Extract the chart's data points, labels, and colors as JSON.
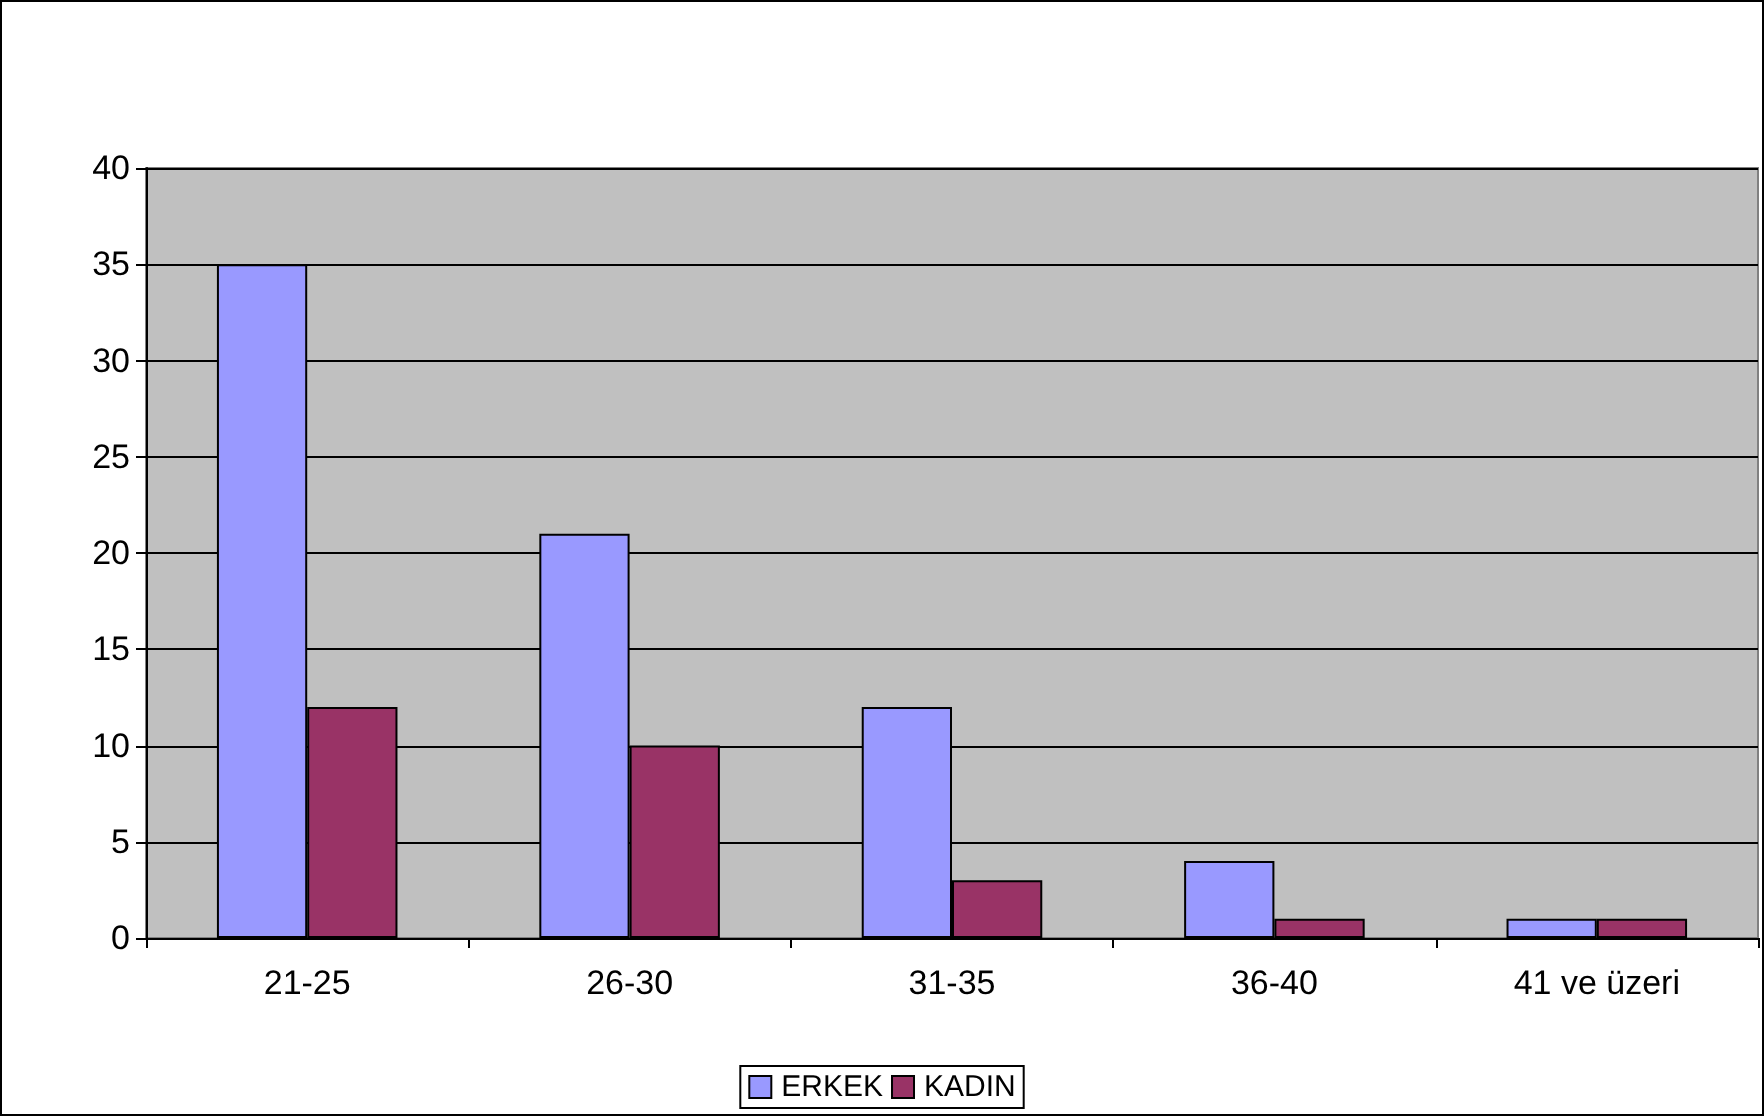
{
  "chart_data": {
    "type": "bar",
    "categories": [
      "21-25",
      "26-30",
      "31-35",
      "36-40",
      "41 ve üzeri"
    ],
    "series": [
      {
        "name": "ERKEK",
        "color": "#9999ff",
        "values": [
          35,
          21,
          12,
          4,
          1
        ]
      },
      {
        "name": "KADIN",
        "color": "#993366",
        "values": [
          12,
          10,
          3,
          1,
          1
        ]
      }
    ],
    "ylim": [
      0,
      40
    ],
    "yticks": [
      0,
      5,
      10,
      15,
      20,
      25,
      30,
      35,
      40
    ],
    "grid": "y",
    "legend": "bottom"
  }
}
